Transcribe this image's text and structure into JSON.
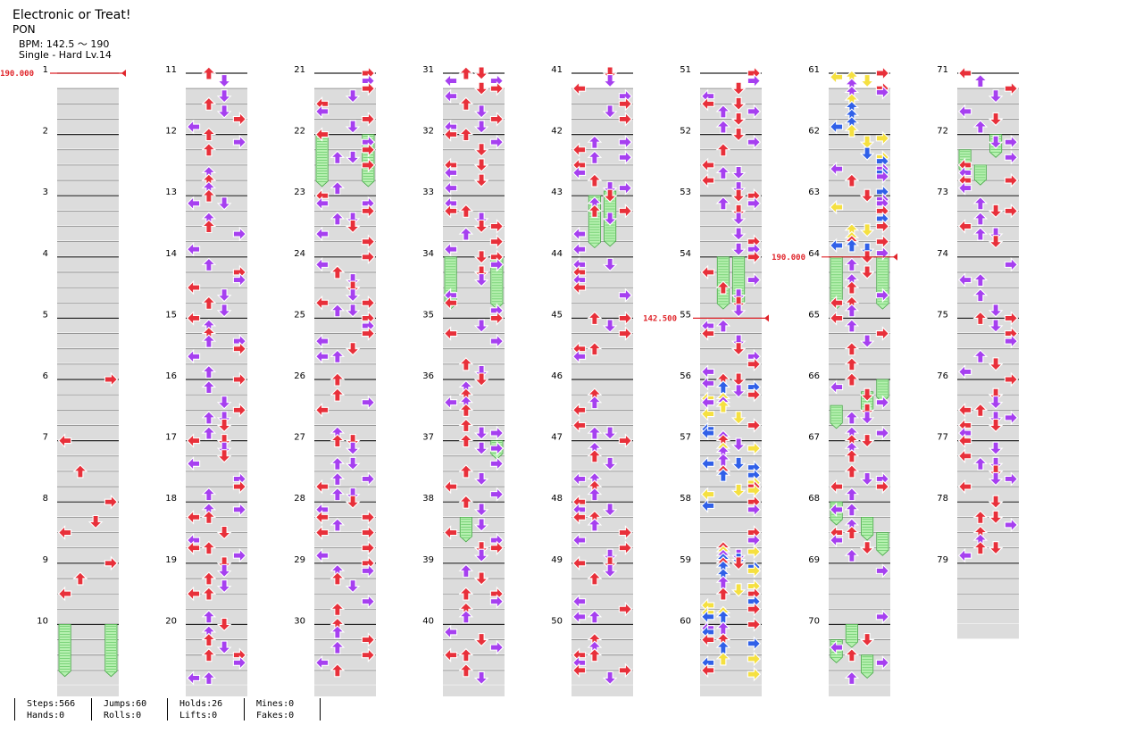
{
  "song": {
    "title": "Electronic or Treat!",
    "artist": "PON",
    "bpm": "BPM: 142.5 ～ 190",
    "difficulty": "Single - Hard  Lv.14"
  },
  "measures": [
    "1",
    "2",
    "3",
    "4",
    "5",
    "6",
    "7",
    "8",
    "9",
    "10",
    "11",
    "12",
    "13",
    "14",
    "15",
    "16",
    "17",
    "18",
    "19",
    "20",
    "21",
    "22",
    "23",
    "24",
    "25",
    "26",
    "27",
    "28",
    "29",
    "30",
    "31",
    "32",
    "33",
    "34",
    "35",
    "36",
    "37",
    "38",
    "39",
    "40",
    "41",
    "42",
    "43",
    "44",
    "45",
    "46",
    "47",
    "48",
    "49",
    "50",
    "51",
    "52",
    "53",
    "54",
    "55",
    "56",
    "57",
    "58",
    "59",
    "60",
    "61",
    "62",
    "63",
    "64",
    "65",
    "66",
    "67",
    "68",
    "69",
    "70",
    "71",
    "72",
    "73",
    "74",
    "75",
    "76",
    "77",
    "78",
    "79"
  ],
  "bpm_changes": [
    {
      "label": "190.000",
      "measure": 1
    },
    {
      "label": "142.500",
      "measure": 55
    },
    {
      "label": "190.000",
      "measure": 64
    }
  ],
  "note_colors": {
    "quarter": "#e8303a",
    "eighth": "#a640f0",
    "sixteenth": "#f5e040",
    "twelfth": "#3060e8",
    "hold": "#8ee08e"
  },
  "stats": {
    "steps": "Steps:566",
    "hands": "Hands:0",
    "jumps": "Jumps:60",
    "rolls": "Rolls:0",
    "holds": "Holds:26",
    "lifts": "Lifts:0",
    "mines": "Mines:0",
    "fakes": "Fakes:0"
  }
}
